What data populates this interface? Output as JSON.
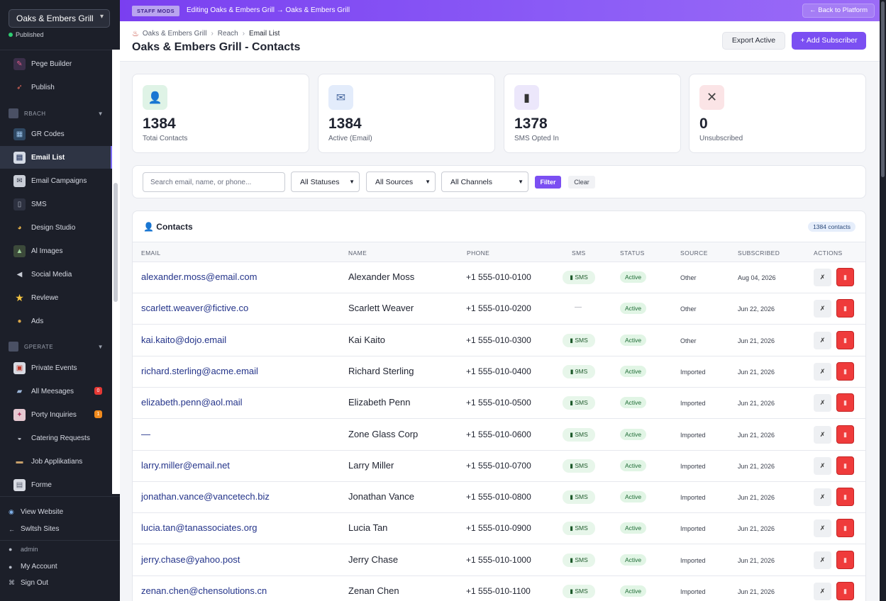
{
  "sidebar": {
    "site_name": "Oaks & Embers Grill",
    "published": "Published",
    "items_top": [
      {
        "label": "Pege Builder",
        "icon": "pen-icon"
      },
      {
        "label": "Publish",
        "icon": "rocket-icon"
      }
    ],
    "section_reach": "RBACH",
    "items_reach": [
      {
        "label": "GR Codes",
        "icon": "qr-code-icon"
      },
      {
        "label": "Email List",
        "icon": "email-list-icon"
      },
      {
        "label": "Email Campaigns",
        "icon": "envelope-icon"
      },
      {
        "label": "SMS",
        "icon": "phone-icon"
      },
      {
        "label": "Design Studio",
        "icon": "palette-icon"
      },
      {
        "label": "Al Images",
        "icon": "image-icon"
      },
      {
        "label": "Social Media",
        "icon": "megaphone-icon"
      },
      {
        "label": "Revlewe",
        "icon": "star-icon"
      },
      {
        "label": "Ads",
        "icon": "money-bag-icon"
      }
    ],
    "section_operate": "GPERATE",
    "items_operate": [
      {
        "label": "Private Events",
        "icon": "calendar-icon"
      },
      {
        "label": "All Meesages",
        "icon": "chat-icon",
        "badge": "0"
      },
      {
        "label": "Porty Inquiries",
        "icon": "party-icon",
        "badge": "1"
      },
      {
        "label": "Catering Requests",
        "icon": "dish-icon"
      },
      {
        "label": "Job Applikatians",
        "icon": "briefcase-icon"
      },
      {
        "label": "Forme",
        "icon": "form-icon"
      }
    ],
    "view_website": "View Website",
    "switch_sites": "Swltsh Sites",
    "user": "admin",
    "my_account": "My Account",
    "sign_out": "Sign Out"
  },
  "topbar": {
    "staff_pill": "STAFF MODS",
    "editing": "Editing Oaks & Embers Grill → Oaks & Embers Grill",
    "back": "← Back to Platform"
  },
  "header": {
    "crumbs": [
      "Oaks & Embers Grill",
      "Reach",
      "Email List"
    ],
    "title": "Oaks & Embers Grill - Contacts",
    "export": "Export Active",
    "add": "+ Add Subscriber"
  },
  "stats": [
    {
      "value": "1384",
      "label": "Totai Contacts",
      "icon": "person-icon",
      "color": "#dff3e6"
    },
    {
      "value": "1384",
      "label": "Active (Email)",
      "icon": "mail-icon",
      "color": "#e3ecfb"
    },
    {
      "value": "1378",
      "label": "SMS Opted In",
      "icon": "mobile-icon",
      "color": "#ece7fb"
    },
    {
      "value": "0",
      "label": "Unsubscribed",
      "icon": "x-icon",
      "color": "#fbe4e6"
    }
  ],
  "filters": {
    "search_placeholder": "Search email, name, or phone...",
    "statuses": "All Statuses",
    "sources": "All Sources",
    "channels": "All Channels",
    "filter": "Filter",
    "clear": "Clear"
  },
  "table": {
    "title": "Contacts",
    "count": "1384 contacts",
    "columns": [
      "EMAIL",
      "NAME",
      "PHONE",
      "SMS",
      "STATUS",
      "SOURCE",
      "SUBSCRIBED",
      "ACTIONS"
    ],
    "rows": [
      {
        "email": "alexander.moss@email.com",
        "name": "Alexander Moss",
        "phone": "+1 555-010-0100",
        "sms": "SMS",
        "status": "Active",
        "source": "Other",
        "date": "Aug 04, 2026"
      },
      {
        "email": "scarlett.weaver@fictive.co",
        "name": "Scarlett Weaver",
        "phone": "+1 555-010-0200",
        "sms": "",
        "status": "Active",
        "source": "Other",
        "date": "Jun 22, 2026"
      },
      {
        "email": "kai.kaito@dojo.email",
        "name": "Kai Kaito",
        "phone": "+1 555-010-0300",
        "sms": "SMS",
        "status": "Active",
        "source": "Other",
        "date": "Jun 21, 2026"
      },
      {
        "email": "richard.sterling@acme.email",
        "name": "Richard Sterling",
        "phone": "+1 555-010-0400",
        "sms": "9MS",
        "status": "Active",
        "source": "Imported",
        "date": "Jun 21, 2026"
      },
      {
        "email": "elizabeth.penn@aol.mail",
        "name": "Elizabeth Penn",
        "phone": "+1 555-010-0500",
        "sms": "SMS",
        "status": "Active",
        "source": "Imported",
        "date": "Jun 21, 2026"
      },
      {
        "email": "—",
        "name": "Zone Glass Corp",
        "phone": "+1 555-010-0600",
        "sms": "SMS",
        "status": "Active",
        "source": "Imported",
        "date": "Jun 21, 2026"
      },
      {
        "email": "larry.miller@email.net",
        "name": "Larry Miller",
        "phone": "+1 555-010-0700",
        "sms": "SMS",
        "status": "Active",
        "source": "Imported",
        "date": "Jun 21, 2026"
      },
      {
        "email": "jonathan.vance@vancetech.biz",
        "name": "Jonathan Vance",
        "phone": "+1 555-010-0800",
        "sms": "SMS",
        "status": "Active",
        "source": "Imported",
        "date": "Jun 21, 2026"
      },
      {
        "email": "lucia.tan@tanassociates.org",
        "name": "Lucia Tan",
        "phone": "+1 555-010-0900",
        "sms": "SMS",
        "status": "Active",
        "source": "Imported",
        "date": "Jun 21, 2026"
      },
      {
        "email": "jerry.chase@yahoo.post",
        "name": "Jerry Chase",
        "phone": "+1 555-010-1000",
        "sms": "SMS",
        "status": "Active",
        "source": "Imported",
        "date": "Jun 21, 2026"
      },
      {
        "email": "zenan.chen@chensolutions.cn",
        "name": "Zenan Chen",
        "phone": "+1 555-010-1100",
        "sms": "SMS",
        "status": "Active",
        "source": "Imported",
        "date": "Jun 21, 2026"
      }
    ]
  }
}
